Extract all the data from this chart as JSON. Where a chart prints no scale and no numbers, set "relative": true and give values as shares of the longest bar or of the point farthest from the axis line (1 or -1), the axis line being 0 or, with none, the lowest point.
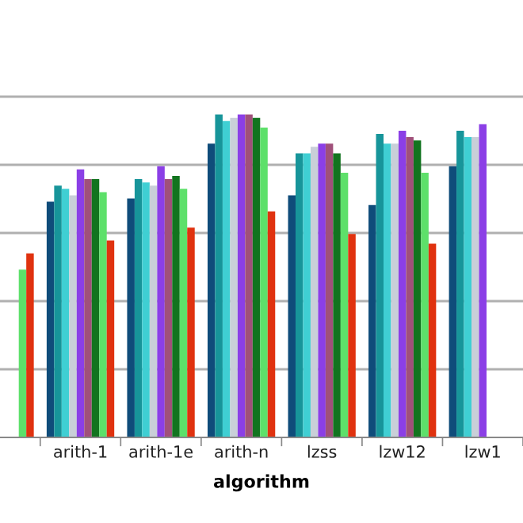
{
  "chart_data": {
    "type": "bar",
    "relative": true,
    "xlabel": "algorithm",
    "grid": "y",
    "categories": [
      null,
      "arith-1",
      "arith-1e",
      "arith-n",
      "lzss",
      "lzw12",
      "lzw1"
    ],
    "series": [
      {
        "color": "#0f4c7a",
        "values": [
          null,
          0.73,
          0.74,
          0.91,
          0.75,
          0.72,
          0.84
        ]
      },
      {
        "color": "#17959a",
        "values": [
          null,
          0.78,
          0.8,
          1.0,
          0.88,
          0.94,
          0.95
        ]
      },
      {
        "color": "#3fcfd3",
        "values": [
          null,
          0.77,
          0.79,
          0.98,
          0.88,
          0.91,
          0.93
        ]
      },
      {
        "color": "#c9cfd8",
        "values": [
          null,
          0.75,
          0.78,
          0.99,
          0.9,
          0.91,
          0.93
        ]
      },
      {
        "color": "#8b3fe6",
        "values": [
          null,
          0.83,
          0.84,
          1.0,
          0.91,
          0.95,
          0.97
        ]
      },
      {
        "color": "#a0507a",
        "values": [
          null,
          0.8,
          0.8,
          1.0,
          0.91,
          0.93,
          null
        ]
      },
      {
        "color": "#12741f",
        "values": [
          null,
          0.8,
          0.81,
          0.99,
          0.88,
          0.92,
          null
        ]
      },
      {
        "color": "#5de06a",
        "values": [
          0.52,
          0.76,
          0.77,
          0.96,
          0.82,
          0.82,
          null
        ]
      },
      {
        "color": "#e0320f",
        "values": [
          0.57,
          0.61,
          0.65,
          0.7,
          0.63,
          0.6,
          null
        ]
      }
    ]
  }
}
